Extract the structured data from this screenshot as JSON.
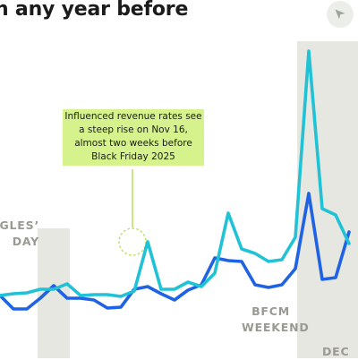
{
  "title": "n any year before",
  "annotation": "Influenced revenue rates see a steep rise on Nov 16, almost two weeks before Black Friday 2025",
  "labels": {
    "singles_day": "GLES’\nDAY",
    "bfcm": "BFCM\nWEEKEND",
    "dec": "DEC"
  },
  "icons": {
    "corner": "compass-arrow-icon"
  },
  "colors": {
    "series_2025": "#1f62e4",
    "series_prior": "#22c2d6",
    "band": "#e6e7e0",
    "annotation_bg": "#d6f28c",
    "highlight_ring": "#b9e264"
  },
  "chart_data": {
    "type": "line",
    "grid": false,
    "series": [
      {
        "values": [
          330,
          328,
          327,
          323,
          323,
          317,
          330,
          329,
          329,
          331,
          325,
          270,
          323,
          323,
          315,
          320,
          305,
          238,
          278,
          283,
          292,
          290,
          265,
          57,
          233,
          240,
          272
        ]
      },
      {
        "values": [
          330,
          345,
          345,
          333,
          319,
          333,
          333,
          335,
          344,
          343,
          323,
          320,
          328,
          335,
          324,
          318,
          288,
          291,
          292,
          318,
          321,
          318,
          300,
          216,
          312,
          310,
          259
        ]
      }
    ]
  }
}
